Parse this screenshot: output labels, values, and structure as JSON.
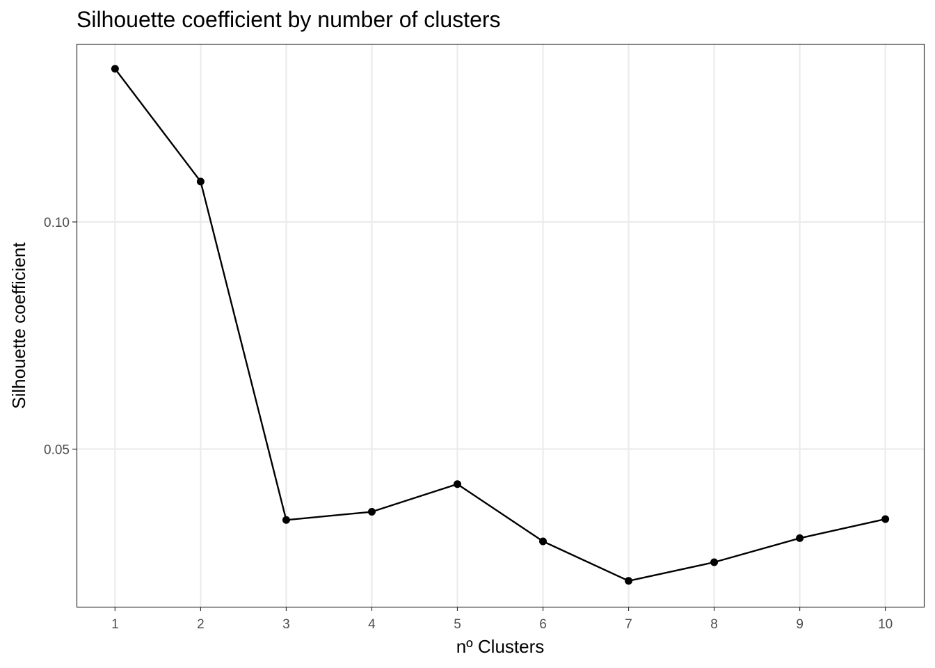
{
  "chart_data": {
    "type": "line",
    "title": "Silhouette coefficient by number of clusters",
    "xlabel": "nº Clusters",
    "ylabel": "Silhouette coefficient",
    "x": [
      1,
      2,
      3,
      4,
      5,
      6,
      7,
      8,
      9,
      10
    ],
    "series": [
      {
        "values": [
          0.1337,
          0.1089,
          0.0344,
          0.0362,
          0.0423,
          0.0297,
          0.021,
          0.0251,
          0.0304,
          0.0346
        ]
      }
    ],
    "x_ticks": [
      "1",
      "2",
      "3",
      "4",
      "5",
      "6",
      "7",
      "8",
      "9",
      "10"
    ],
    "y_ticks": [
      {
        "value": 0.05,
        "label": "0.05"
      },
      {
        "value": 0.1,
        "label": "0.10"
      }
    ],
    "xlim": [
      0.55,
      10.45
    ],
    "ylim": [
      0.0153,
      0.1392
    ],
    "grid": true,
    "legend": "none",
    "colors": {
      "line": "#000000",
      "points": "#000000",
      "grid": "#ebebeb",
      "panel_border": "#333333",
      "tick_label": "#4d4d4d"
    }
  }
}
